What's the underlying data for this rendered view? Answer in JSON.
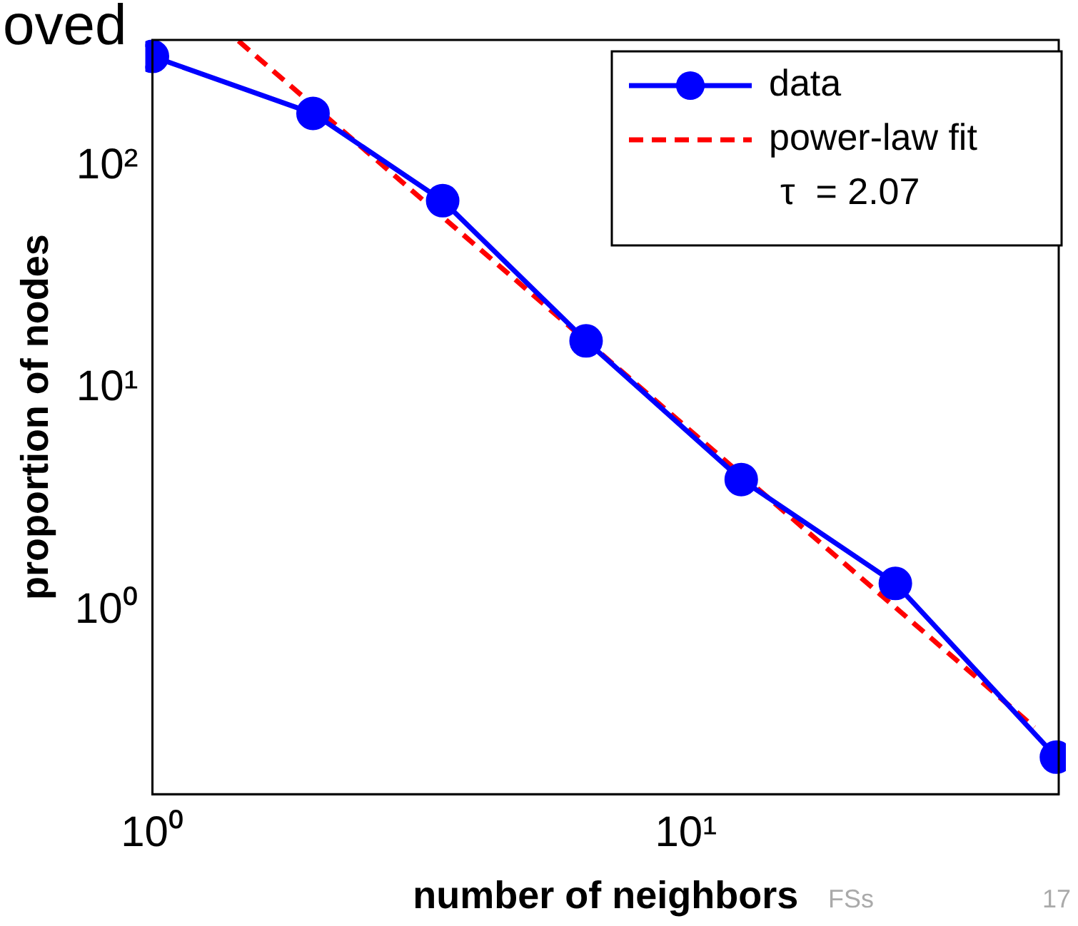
{
  "chart_data": {
    "type": "line",
    "title": "oved",
    "xlabel": "number of neighbors",
    "ylabel": "proportion of nodes",
    "log": "xy",
    "xlim": [
      1,
      50
    ],
    "ylim": [
      0.15,
      370
    ],
    "xticks": [
      {
        "value": 1,
        "label": "10⁰"
      },
      {
        "value": 10,
        "label": "10¹"
      }
    ],
    "yticks": [
      {
        "value": 1,
        "label": "10⁰"
      },
      {
        "value": 10,
        "label": "10¹"
      },
      {
        "value": 100,
        "label": "10²"
      }
    ],
    "series": [
      {
        "name": "data",
        "color": "#0000ff",
        "x": [
          1,
          2,
          3.5,
          6.5,
          12.7,
          24.7,
          49.5
        ],
        "values": [
          312,
          173,
          70,
          16.4,
          3.9,
          1.33,
          0.22
        ],
        "marker": "circle",
        "line_style": "solid"
      },
      {
        "name": "power-law fit",
        "color": "#ff0000",
        "x": [
          1.45,
          45
        ],
        "values": [
          366,
          0.3
        ],
        "marker": "none",
        "line_style": "dashed"
      }
    ],
    "legend": "top right",
    "grid": false,
    "annotations": [
      "τ  = 2.07",
      "FSs",
      "17"
    ]
  }
}
